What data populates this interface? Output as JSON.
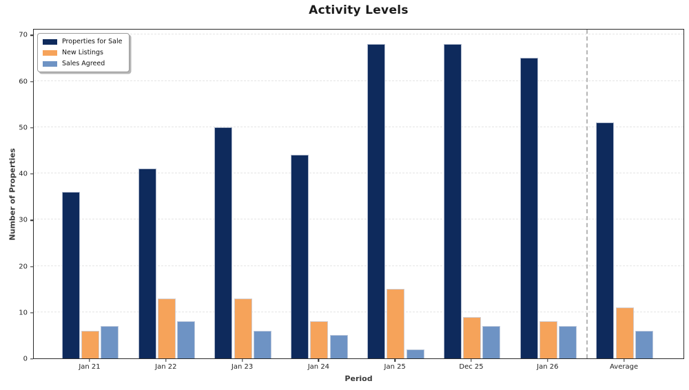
{
  "chart_data": {
    "type": "bar",
    "title": "Activity Levels",
    "xlabel": "Period",
    "ylabel": "Number of Properties",
    "categories": [
      "Jan 21",
      "Jan 22",
      "Jan 23",
      "Jan 24",
      "Jan 25",
      "Dec 25",
      "Jan 26",
      "Average"
    ],
    "series": [
      {
        "name": "Properties for Sale",
        "color": "#0e2a5c",
        "values": [
          36,
          41,
          50,
          44,
          68,
          68,
          65,
          51
        ]
      },
      {
        "name": "New Listings",
        "color": "#f6a35a",
        "values": [
          6,
          13,
          13,
          8,
          15,
          9,
          8,
          11
        ]
      },
      {
        "name": "Sales Agreed",
        "color": "#6e93c4",
        "values": [
          7,
          8,
          6,
          5,
          2,
          7,
          7,
          6
        ]
      }
    ],
    "ylim": [
      0,
      71.4
    ],
    "yticks": [
      0,
      10,
      20,
      30,
      40,
      50,
      60,
      70
    ],
    "grid": "horizontal-dashed",
    "legend_position": "upper-left",
    "separator_before_category": "Average",
    "separator_color": "#b5b5b5",
    "background": "#ffffff"
  }
}
